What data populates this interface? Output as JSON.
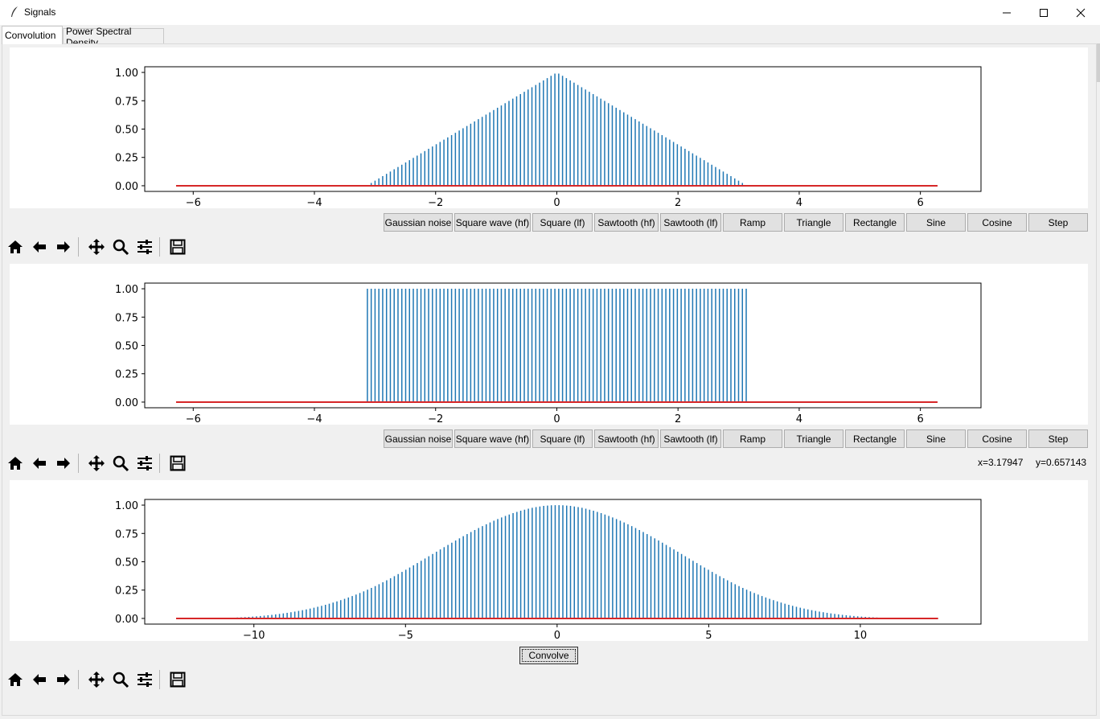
{
  "window": {
    "title": "Signals"
  },
  "tabs": [
    {
      "label": "Convolution",
      "active": true
    },
    {
      "label": "Power Spectral Density",
      "active": false
    }
  ],
  "signal_buttons": [
    "Gaussian noise",
    "Square wave (hf)",
    "Square (lf)",
    "Sawtooth (hf)",
    "Sawtooth (lf)",
    "Ramp",
    "Triangle",
    "Rectangle",
    "Sine",
    "Cosine",
    "Step"
  ],
  "toolbar_icons": [
    "home-icon",
    "back-arrow-icon",
    "forward-arrow-icon",
    "pan-icon",
    "zoom-icon",
    "configure-subplots-icon",
    "save-icon"
  ],
  "coords": {
    "x": "x=3.17947",
    "y": "y=0.657143"
  },
  "convolve_label": "Convolve",
  "colors": {
    "stem": "#1f77b4",
    "baseline": "#d62728"
  },
  "chart_data": [
    {
      "type": "bar",
      "name": "signal-1",
      "shape": "triangle",
      "xlim": [
        -6.8,
        7.0
      ],
      "ylim": [
        -0.05,
        1.05
      ],
      "xticks": [
        -6,
        -4,
        -2,
        0,
        2,
        4,
        6
      ],
      "xtick_labels": [
        "−6",
        "−4",
        "−2",
        "0",
        "2",
        "4",
        "6"
      ],
      "yticks": [
        0.0,
        0.25,
        0.5,
        0.75,
        1.0
      ],
      "ytick_labels": [
        "0.00",
        "0.25",
        "0.50",
        "0.75",
        "1.00"
      ],
      "baseline_range": [
        -6.283,
        6.283
      ],
      "support": [
        -3.14,
        3.14
      ],
      "points": 200,
      "peak": 1.0
    },
    {
      "type": "bar",
      "name": "signal-2",
      "shape": "rectangle",
      "xlim": [
        -6.8,
        7.0
      ],
      "ylim": [
        -0.05,
        1.05
      ],
      "xticks": [
        -6,
        -4,
        -2,
        0,
        2,
        4,
        6
      ],
      "xtick_labels": [
        "−6",
        "−4",
        "−2",
        "0",
        "2",
        "4",
        "6"
      ],
      "yticks": [
        0.0,
        0.25,
        0.5,
        0.75,
        1.0
      ],
      "ytick_labels": [
        "0.00",
        "0.25",
        "0.50",
        "0.75",
        "1.00"
      ],
      "baseline_range": [
        -6.283,
        6.283
      ],
      "support": [
        -3.14,
        3.14
      ],
      "points": 200,
      "peak": 1.0
    },
    {
      "type": "bar",
      "name": "convolution-result",
      "shape": "bell",
      "xlim": [
        -13.6,
        13.98
      ],
      "ylim": [
        -0.05,
        1.05
      ],
      "xticks": [
        -10,
        -5,
        0,
        5,
        10
      ],
      "xtick_labels": [
        "−10",
        "−5",
        "0",
        "5",
        "10"
      ],
      "yticks": [
        0.0,
        0.25,
        0.5,
        0.75,
        1.0
      ],
      "ytick_labels": [
        "0.00",
        "0.25",
        "0.50",
        "0.75",
        "1.00"
      ],
      "baseline_range": [
        -12.566,
        12.566
      ],
      "support": [
        -12.566,
        12.566
      ],
      "points": 200,
      "peak": 1.0
    }
  ]
}
